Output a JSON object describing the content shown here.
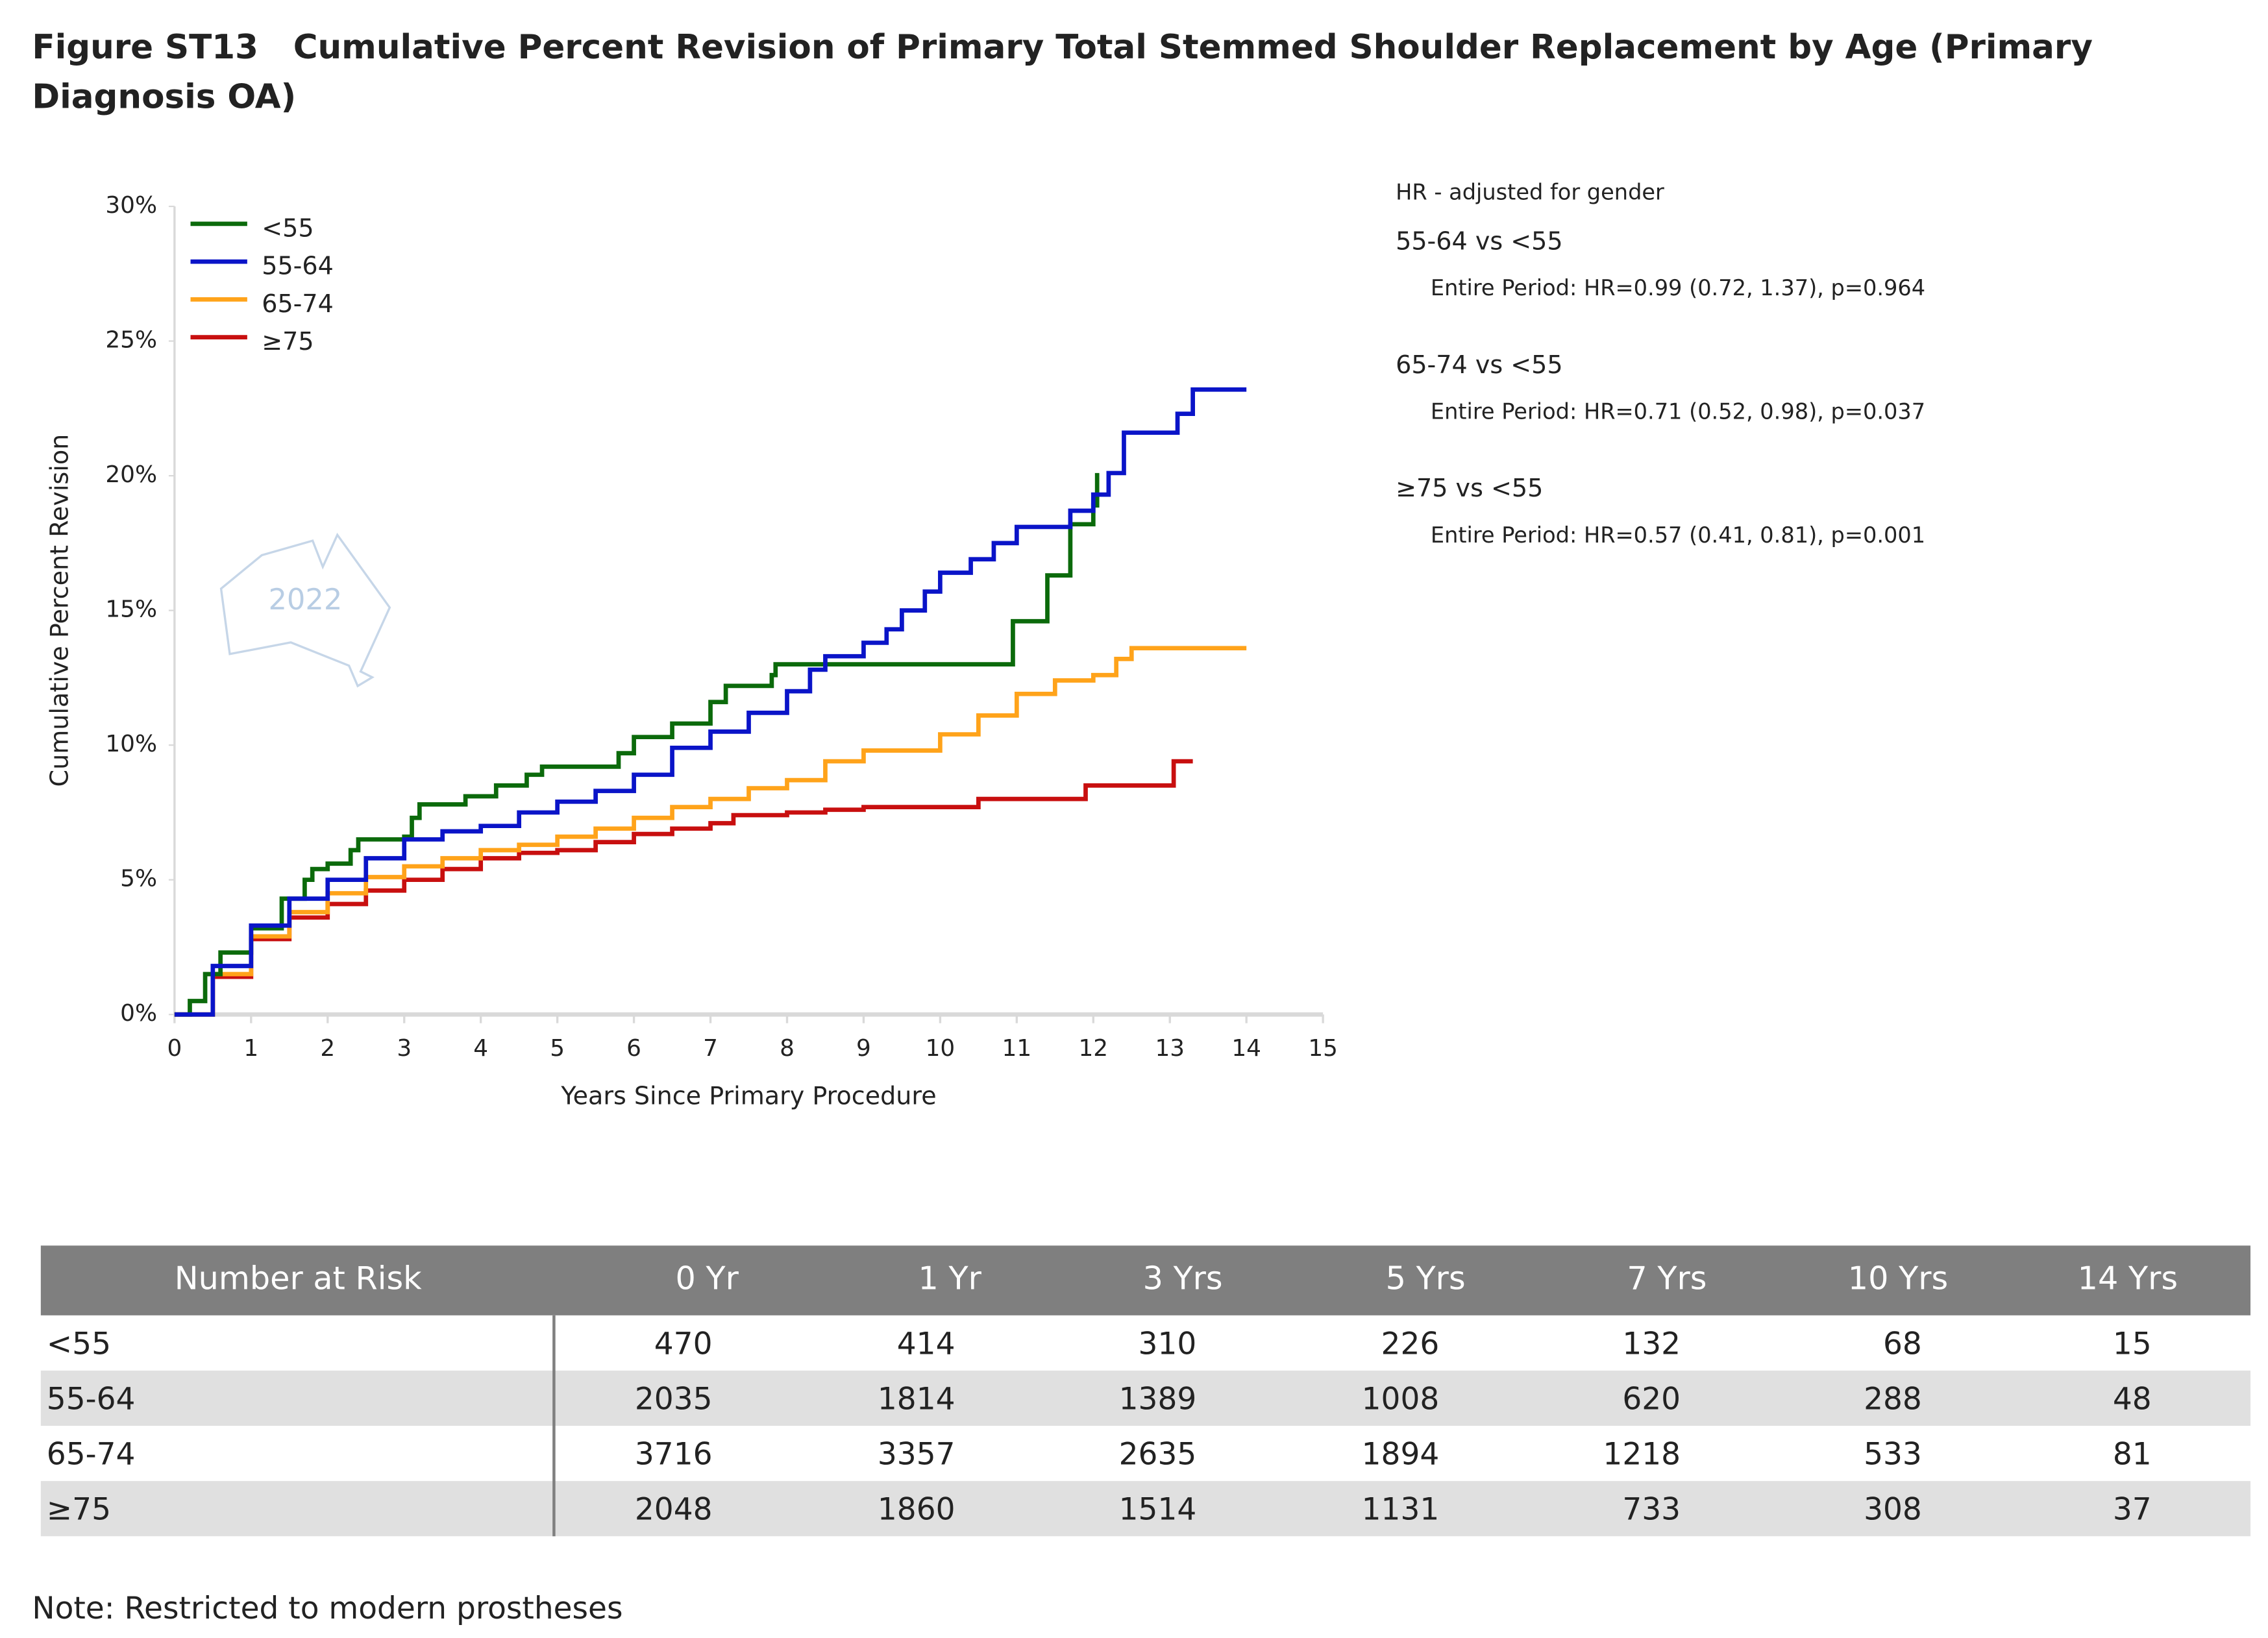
{
  "chart_data": {
    "type": "line",
    "step": true,
    "title": "Figure ST13   Cumulative Percent Revision of Primary Total Stemmed Shoulder Replacement by Age (Primary Diagnosis OA)",
    "xlabel": "Years Since Primary Procedure",
    "ylabel": "Cumulative Percent Revision",
    "xlim": [
      0,
      15
    ],
    "xticks": [
      0,
      1,
      2,
      3,
      4,
      5,
      6,
      7,
      8,
      9,
      10,
      11,
      12,
      13,
      14,
      15
    ],
    "ylim": [
      0,
      30
    ],
    "yticks": [
      {
        "value": 0,
        "label": "0%"
      },
      {
        "value": 5,
        "label": "5%"
      },
      {
        "value": 10,
        "label": "10%"
      },
      {
        "value": 15,
        "label": "15%"
      },
      {
        "value": 20,
        "label": "20%"
      },
      {
        "value": 25,
        "label": "25%"
      },
      {
        "value": 30,
        "label": "30%"
      }
    ],
    "legend": "top-left",
    "watermark": "2022",
    "series": [
      {
        "name": "<55",
        "color": "#0b6a0b",
        "x": [
          0,
          0.2,
          0.4,
          0.6,
          1,
          1.4,
          1.7,
          1.8,
          2,
          2.3,
          2.4,
          3,
          3.1,
          3.2,
          3.8,
          4.2,
          4.6,
          4.8,
          5.8,
          6,
          6.5,
          7,
          7.2,
          7.8,
          7.85,
          10.9,
          10.95,
          11.4,
          11.7,
          12,
          12.05
        ],
        "values": [
          0,
          0.5,
          1.5,
          2.3,
          3.2,
          4.3,
          5,
          5.4,
          5.6,
          6.1,
          6.5,
          6.6,
          7.3,
          7.8,
          8.1,
          8.5,
          8.9,
          9.2,
          9.7,
          10.3,
          10.8,
          11.6,
          12.2,
          12.6,
          13,
          13,
          14.6,
          16.3,
          18.2,
          18.9,
          20.1
        ]
      },
      {
        "name": "55-64",
        "color": "#0a14c8",
        "x": [
          0,
          0.5,
          1,
          1.5,
          2,
          2.5,
          3,
          3.5,
          4,
          4.5,
          5,
          5.5,
          6,
          6.5,
          7,
          7.5,
          8,
          8.3,
          8.5,
          9,
          9.3,
          9.5,
          9.8,
          10,
          10.4,
          10.7,
          11,
          11.6,
          11.7,
          12,
          12.2,
          12.4,
          13.1,
          13.3,
          14
        ],
        "values": [
          0,
          1.8,
          3.3,
          4.3,
          5,
          5.8,
          6.5,
          6.8,
          7,
          7.5,
          7.9,
          8.3,
          8.9,
          9.9,
          10.5,
          11.2,
          12,
          12.8,
          13.3,
          13.8,
          14.3,
          15,
          15.7,
          16.4,
          16.9,
          17.5,
          18.1,
          18.1,
          18.7,
          19.3,
          20.1,
          21.6,
          22.3,
          23.2,
          23.2
        ]
      },
      {
        "name": "65-74",
        "color": "#ffa31a",
        "x": [
          0,
          0.5,
          1,
          1.5,
          2,
          2.5,
          3,
          3.5,
          4,
          4.5,
          5,
          5.5,
          6,
          6.5,
          7,
          7.5,
          8,
          8.5,
          9,
          9.5,
          10,
          10.5,
          11,
          11.5,
          12,
          12.3,
          12.5,
          14
        ],
        "values": [
          0,
          1.5,
          2.9,
          3.8,
          4.5,
          5.1,
          5.5,
          5.8,
          6.1,
          6.3,
          6.6,
          6.9,
          7.3,
          7.7,
          8,
          8.4,
          8.7,
          9.4,
          9.8,
          9.8,
          10.4,
          11.1,
          11.9,
          12.4,
          12.6,
          13.2,
          13.6,
          13.6
        ]
      },
      {
        "name": "≥75",
        "color": "#c80f0f",
        "x": [
          0,
          0.5,
          1,
          1.5,
          2,
          2.5,
          3,
          3.5,
          4,
          4.5,
          5,
          5.5,
          6,
          6.5,
          7,
          7.3,
          8,
          8.5,
          9,
          10,
          10.5,
          11.5,
          11.9,
          13,
          13.05,
          13.3
        ],
        "values": [
          0,
          1.4,
          2.8,
          3.6,
          4.1,
          4.6,
          5,
          5.4,
          5.8,
          6,
          6.1,
          6.4,
          6.7,
          6.9,
          7.1,
          7.4,
          7.5,
          7.6,
          7.7,
          7.7,
          8,
          8,
          8.5,
          8.5,
          9.4,
          9.4
        ]
      }
    ],
    "annotations": [
      "HR - adjusted for gender",
      "55-64 vs <55",
      "Entire Period: HR=0.99 (0.72, 1.37), p=0.964",
      "65-74 vs <55",
      "Entire Period: HR=0.71 (0.52, 0.98), p=0.037",
      "≥75 vs <55",
      "Entire Period: HR=0.57 (0.41, 0.81), p=0.001"
    ]
  },
  "risk_table": {
    "header": [
      "Number at Risk",
      "0 Yr",
      "1 Yr",
      "3 Yrs",
      "5 Yrs",
      "7 Yrs",
      "10 Yrs",
      "14 Yrs"
    ],
    "rows": [
      [
        "<55",
        "470",
        "414",
        "310",
        "226",
        "132",
        "68",
        "15"
      ],
      [
        "55-64",
        "2035",
        "1814",
        "1389",
        "1008",
        "620",
        "288",
        "48"
      ],
      [
        "65-74",
        "3716",
        "3357",
        "2635",
        "1894",
        "1218",
        "533",
        "81"
      ],
      [
        "≥75",
        "2048",
        "1860",
        "1514",
        "1131",
        "733",
        "308",
        "37"
      ]
    ]
  },
  "note": "Note: Restricted to modern prostheses"
}
